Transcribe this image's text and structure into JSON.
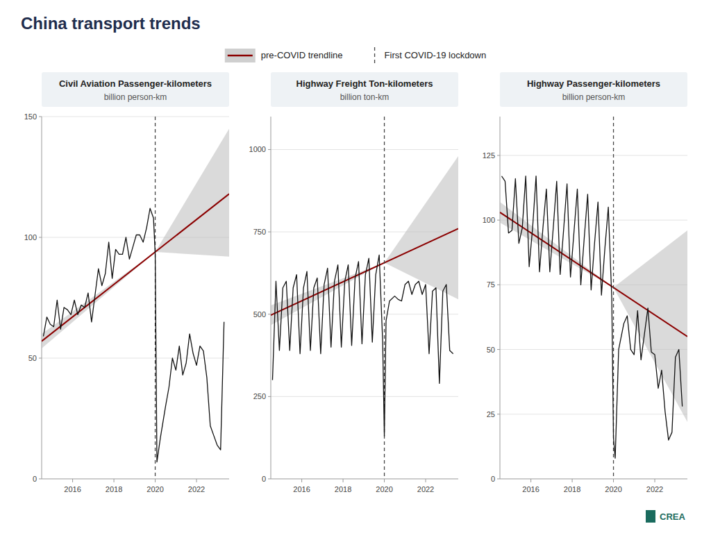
{
  "title": "China transport trends",
  "legend": "top",
  "annotations": [
    {
      "text": "CREA"
    }
  ],
  "chart_data": [
    {
      "type": "line",
      "title": "Civil Aviation Passenger-kilometers",
      "subtitle": "billion person-km",
      "xlim": [
        2014.5,
        2023.58
      ],
      "xticks": [
        2016,
        2018,
        2020,
        2022
      ],
      "ylim": [
        0,
        150
      ],
      "yticks": [
        0,
        50,
        100,
        150
      ],
      "grid": true,
      "x": [
        2014.583,
        2014.75,
        2014.917,
        2015.083,
        2015.25,
        2015.417,
        2015.583,
        2015.75,
        2015.917,
        2016.083,
        2016.25,
        2016.417,
        2016.583,
        2016.75,
        2016.917,
        2017.083,
        2017.25,
        2017.417,
        2017.583,
        2017.75,
        2017.917,
        2018.083,
        2018.25,
        2018.417,
        2018.583,
        2018.75,
        2018.917,
        2019.083,
        2019.25,
        2019.417,
        2019.583,
        2019.75,
        2019.917,
        2020.0,
        2020.083,
        2020.25,
        2020.5,
        2020.667,
        2020.833,
        2021.0,
        2021.167,
        2021.333,
        2021.5,
        2021.667,
        2021.833,
        2022.0,
        2022.167,
        2022.333,
        2022.5,
        2022.667,
        2022.833,
        2023.0,
        2023.167,
        2023.333
      ],
      "series": [
        {
          "type": "band",
          "color": "#bbbbbb",
          "x": [
            2014.5,
            2020.0,
            2023.58
          ],
          "upper": [
            60,
            93.94933920704845,
            145
          ],
          "lower": [
            54,
            93.94933920704845,
            92
          ]
        },
        {
          "type": "line",
          "name": "pre-COVID trendline",
          "color": "#8b0000",
          "x": [
            2014.5,
            2023.58
          ],
          "values": [
            57,
            118
          ]
        },
        {
          "type": "vline",
          "name": "First COVID-19 lockdown",
          "color": "#444444",
          "line_style": "dashed",
          "x": [
            2020.0
          ]
        },
        {
          "type": "line",
          "color": "#111111",
          "values": [
            59,
            67,
            64,
            63,
            74,
            62,
            71,
            70,
            68,
            74,
            68,
            72,
            71,
            77,
            65,
            76,
            87,
            80,
            85,
            98,
            83,
            95,
            93,
            93,
            100,
            91,
            96,
            101,
            101,
            98,
            104,
            112,
            108,
            93,
            7,
            17,
            30,
            38,
            50,
            45,
            55,
            43,
            48,
            60,
            52,
            47,
            55,
            53,
            42,
            22,
            18,
            14,
            12,
            65
          ]
        }
      ]
    },
    {
      "type": "line",
      "title": "Highway Freight Ton-kilometers",
      "subtitle": "billion ton-km",
      "xlim": [
        2014.5,
        2023.58
      ],
      "xticks": [
        2016,
        2018,
        2020,
        2022
      ],
      "ylim": [
        0,
        1100
      ],
      "yticks": [
        0,
        250,
        500,
        750,
        1000
      ],
      "grid": true,
      "x": [
        2014.583,
        2014.75,
        2014.917,
        2015.083,
        2015.25,
        2015.417,
        2015.583,
        2015.75,
        2015.917,
        2016.083,
        2016.25,
        2016.417,
        2016.583,
        2016.75,
        2016.917,
        2017.083,
        2017.25,
        2017.417,
        2017.583,
        2017.75,
        2017.917,
        2018.083,
        2018.25,
        2018.417,
        2018.583,
        2018.75,
        2018.917,
        2019.083,
        2019.25,
        2019.417,
        2019.583,
        2019.75,
        2019.917,
        2020.0,
        2020.083,
        2020.25,
        2020.5,
        2020.667,
        2020.833,
        2021.0,
        2021.167,
        2021.333,
        2021.5,
        2021.667,
        2021.833,
        2022.0,
        2022.167,
        2022.333,
        2022.5,
        2022.667,
        2022.833,
        2023.0,
        2023.167,
        2023.333
      ],
      "series": [
        {
          "type": "band",
          "color": "#bbbbbb",
          "x": [
            2014.5,
            2020.0,
            2023.58
          ],
          "upper": [
            527,
            656.306167400881,
            980
          ],
          "lower": [
            467,
            656.306167400881,
            545
          ]
        },
        {
          "type": "line",
          "name": "pre-COVID trendline",
          "color": "#8b0000",
          "x": [
            2014.5,
            2023.58
          ],
          "values": [
            497,
            760
          ]
        },
        {
          "type": "vline",
          "name": "First COVID-19 lockdown",
          "color": "#444444",
          "line_style": "dashed",
          "x": [
            2020.0
          ]
        },
        {
          "type": "line",
          "color": "#111111",
          "values": [
            300,
            600,
            390,
            580,
            600,
            390,
            580,
            620,
            380,
            580,
            630,
            390,
            580,
            610,
            380,
            590,
            640,
            400,
            600,
            650,
            400,
            600,
            650,
            405,
            610,
            660,
            410,
            620,
            670,
            415,
            620,
            680,
            420,
            130,
            480,
            540,
            555,
            545,
            540,
            590,
            600,
            560,
            590,
            600,
            560,
            590,
            380,
            570,
            580,
            290,
            570,
            590,
            390,
            380
          ]
        }
      ]
    },
    {
      "type": "line",
      "title": "Highway Passenger-kilometers",
      "subtitle": "billion person-km",
      "xlim": [
        2014.5,
        2023.58
      ],
      "xticks": [
        2016,
        2018,
        2020,
        2022
      ],
      "ylim": [
        0,
        140
      ],
      "yticks": [
        0,
        25,
        50,
        75,
        100,
        125
      ],
      "grid": true,
      "x": [
        2014.583,
        2014.75,
        2014.917,
        2015.083,
        2015.25,
        2015.417,
        2015.583,
        2015.75,
        2015.917,
        2016.083,
        2016.25,
        2016.417,
        2016.583,
        2016.75,
        2016.917,
        2017.083,
        2017.25,
        2017.417,
        2017.583,
        2017.75,
        2017.917,
        2018.083,
        2018.25,
        2018.417,
        2018.583,
        2018.75,
        2018.917,
        2019.083,
        2019.25,
        2019.417,
        2019.583,
        2019.75,
        2019.917,
        2020.0,
        2020.083,
        2020.25,
        2020.5,
        2020.667,
        2020.833,
        2021.0,
        2021.167,
        2021.333,
        2021.5,
        2021.667,
        2021.833,
        2022.0,
        2022.167,
        2022.333,
        2022.5,
        2022.667,
        2022.833,
        2023.0,
        2023.167,
        2023.333
      ],
      "series": [
        {
          "type": "band",
          "color": "#bbbbbb",
          "x": [
            2014.5,
            2020.0,
            2023.58
          ],
          "upper": [
            107,
            73.9251101321586,
            96
          ],
          "lower": [
            99,
            73.9251101321586,
            22
          ]
        },
        {
          "type": "line",
          "name": "pre-COVID trendline",
          "color": "#8b0000",
          "x": [
            2014.5,
            2023.58
          ],
          "values": [
            103,
            55
          ]
        },
        {
          "type": "vline",
          "name": "First COVID-19 lockdown",
          "color": "#444444",
          "line_style": "dashed",
          "x": [
            2020.0
          ]
        },
        {
          "type": "line",
          "color": "#111111",
          "values": [
            117,
            115,
            95,
            96,
            116,
            91,
            97,
            117,
            82,
            97,
            117,
            80,
            97,
            112,
            80,
            97,
            115,
            79,
            96,
            114,
            78,
            95,
            112,
            75,
            93,
            110,
            73,
            91,
            107,
            71,
            89,
            105,
            70,
            16,
            8,
            50,
            60,
            63,
            50,
            48,
            65,
            46,
            56,
            66,
            49,
            48,
            35,
            42,
            26,
            15,
            18,
            47,
            50,
            28
          ]
        }
      ]
    }
  ]
}
